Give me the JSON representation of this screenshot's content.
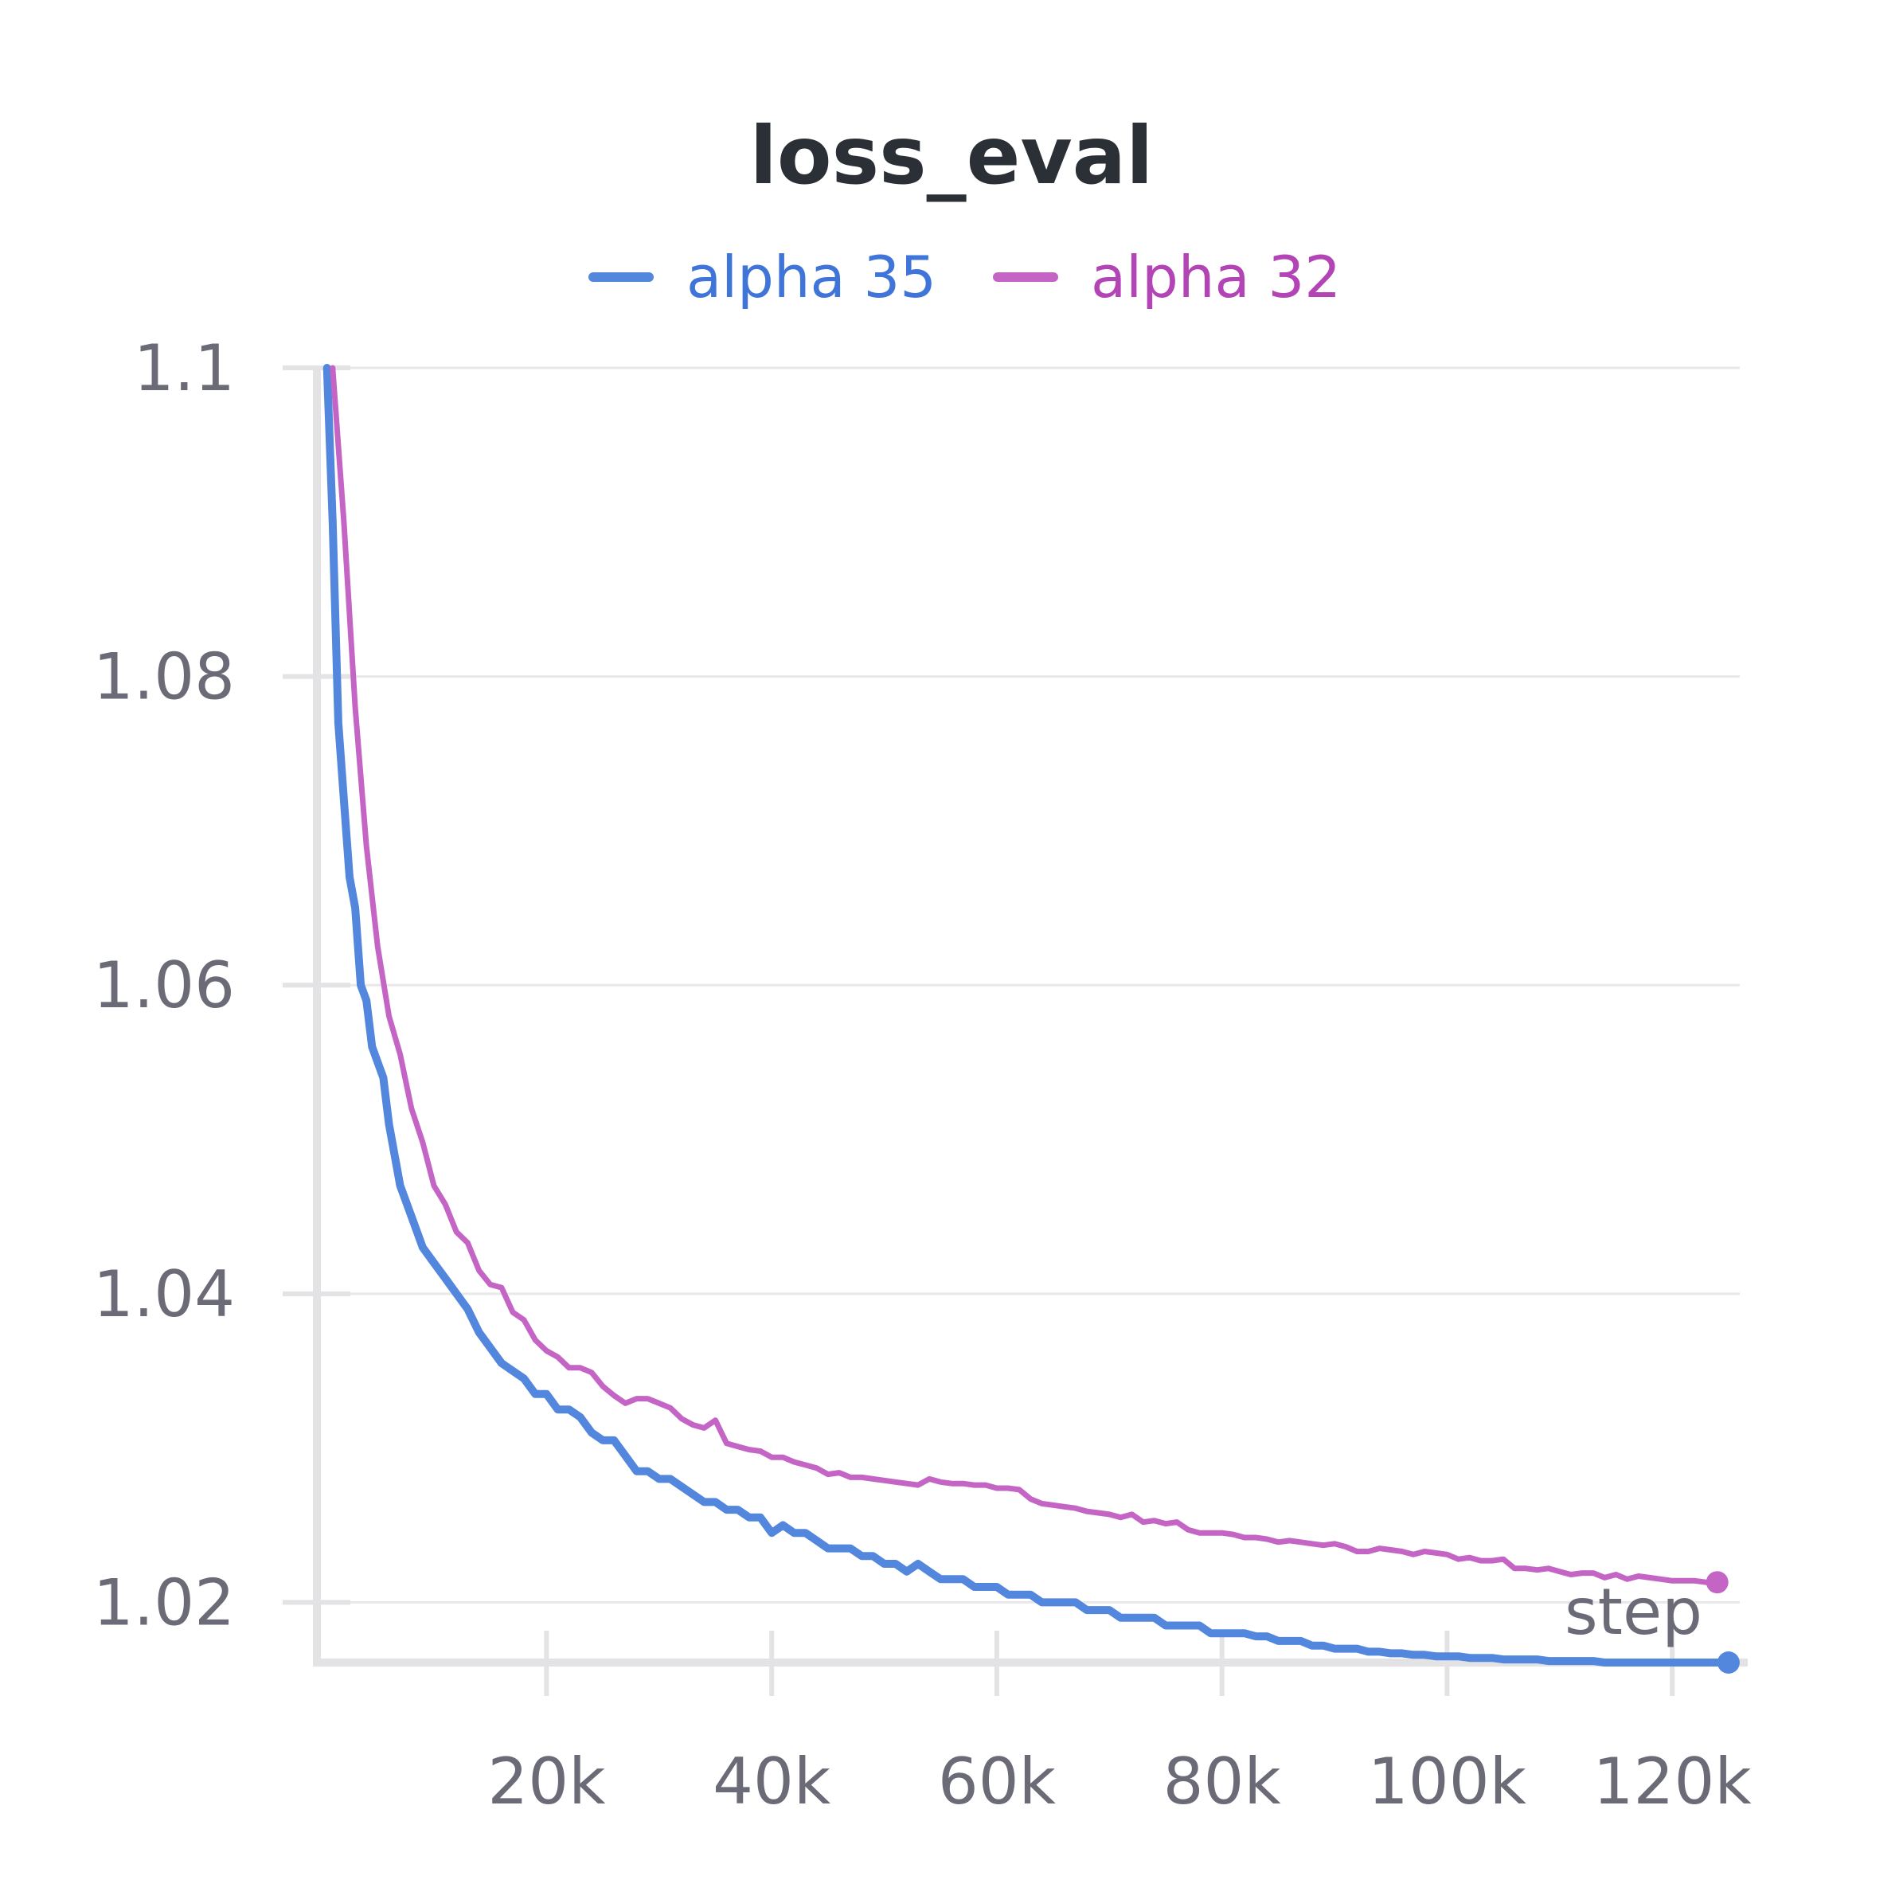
{
  "chart_data": {
    "type": "line",
    "title": "loss_eval",
    "xlabel": "step",
    "ylabel": "",
    "xlim": [
      -400,
      126000
    ],
    "ylim": [
      1.0161,
      1.1
    ],
    "grid": true,
    "legend_position": "top-center",
    "x_ticks": [
      {
        "value": 20000,
        "label": "20k"
      },
      {
        "value": 40000,
        "label": "40k"
      },
      {
        "value": 60000,
        "label": "60k"
      },
      {
        "value": 80000,
        "label": "80k"
      },
      {
        "value": 100000,
        "label": "100k"
      },
      {
        "value": 120000,
        "label": "120k"
      }
    ],
    "y_ticks": [
      {
        "value": 1.1,
        "label": "1.1"
      },
      {
        "value": 1.08,
        "label": "1.08"
      },
      {
        "value": 1.06,
        "label": "1.06"
      },
      {
        "value": 1.04,
        "label": "1.04"
      },
      {
        "value": 1.02,
        "label": "1.02"
      }
    ],
    "series": [
      {
        "name": "alpha 35",
        "color": "#5387dd",
        "x": [
          500,
          1000,
          1500,
          2000,
          2500,
          3000,
          3500,
          4000,
          4500,
          5000,
          5500,
          6000,
          7000,
          8000,
          9000,
          10000,
          11000,
          12000,
          13000,
          14000,
          15000,
          16000,
          17000,
          18000,
          19000,
          20000,
          21000,
          22000,
          23000,
          24000,
          25000,
          26000,
          27000,
          28000,
          29000,
          30000,
          31000,
          32000,
          33000,
          34000,
          35000,
          36000,
          37000,
          38000,
          39000,
          40000,
          41000,
          42000,
          43000,
          44000,
          45000,
          46000,
          47000,
          48000,
          49000,
          50000,
          51000,
          52000,
          53000,
          54000,
          55000,
          56000,
          57000,
          58000,
          59000,
          60000,
          61000,
          62000,
          63000,
          64000,
          65000,
          66000,
          67000,
          68000,
          69000,
          70000,
          71000,
          72000,
          73000,
          74000,
          75000,
          76000,
          77000,
          78000,
          79000,
          80000,
          81000,
          82000,
          83000,
          84000,
          85000,
          86000,
          87000,
          88000,
          89000,
          90000,
          91000,
          92000,
          93000,
          94000,
          95000,
          96000,
          97000,
          98000,
          99000,
          100000,
          101000,
          102000,
          103000,
          104000,
          105000,
          106000,
          107000,
          108000,
          109000,
          110000,
          111000,
          112000,
          113000,
          114000,
          115000,
          116000,
          117000,
          118000,
          119000,
          120000,
          121000,
          122000,
          123000,
          124000,
          125000
        ],
        "values": [
          1.1,
          1.09,
          1.077,
          1.072,
          1.067,
          1.065,
          1.06,
          1.059,
          1.056,
          1.055,
          1.054,
          1.051,
          1.047,
          1.045,
          1.043,
          1.042,
          1.041,
          1.04,
          1.039,
          1.0375,
          1.0365,
          1.0355,
          1.035,
          1.0345,
          1.0335,
          1.0335,
          1.0325,
          1.0325,
          1.032,
          1.031,
          1.0305,
          1.0305,
          1.0295,
          1.0285,
          1.0285,
          1.028,
          1.028,
          1.0275,
          1.027,
          1.0265,
          1.0265,
          1.026,
          1.026,
          1.0255,
          1.0255,
          1.0245,
          1.025,
          1.0245,
          1.0245,
          1.024,
          1.0235,
          1.0235,
          1.0235,
          1.023,
          1.023,
          1.0225,
          1.0225,
          1.022,
          1.0225,
          1.022,
          1.0215,
          1.0215,
          1.0215,
          1.021,
          1.021,
          1.021,
          1.0205,
          1.0205,
          1.0205,
          1.02,
          1.02,
          1.02,
          1.02,
          1.0195,
          1.0195,
          1.0195,
          1.019,
          1.019,
          1.019,
          1.019,
          1.0185,
          1.0185,
          1.0185,
          1.0185,
          1.018,
          1.018,
          1.018,
          1.018,
          1.0178,
          1.0178,
          1.0175,
          1.0175,
          1.0175,
          1.0172,
          1.0172,
          1.017,
          1.017,
          1.017,
          1.0168,
          1.0168,
          1.0167,
          1.0167,
          1.0166,
          1.0166,
          1.0165,
          1.0165,
          1.0165,
          1.0164,
          1.0164,
          1.0164,
          1.0163,
          1.0163,
          1.0163,
          1.0163,
          1.0162,
          1.0162,
          1.0162,
          1.0162,
          1.0162,
          1.0161,
          1.0161,
          1.0161,
          1.0161,
          1.0161,
          1.0161,
          1.0161,
          1.0161,
          1.0161,
          1.0161,
          1.0161,
          1.0161
        ]
      },
      {
        "name": "alpha 32",
        "color": "#c465c6",
        "x": [
          1000,
          2000,
          3000,
          4000,
          5000,
          6000,
          7000,
          8000,
          9000,
          10000,
          11000,
          12000,
          13000,
          14000,
          15000,
          16000,
          17000,
          18000,
          19000,
          20000,
          21000,
          22000,
          23000,
          24000,
          25000,
          26000,
          27000,
          28000,
          29000,
          30000,
          31000,
          32000,
          33000,
          34000,
          35000,
          36000,
          37000,
          38000,
          39000,
          40000,
          41000,
          42000,
          43000,
          44000,
          45000,
          46000,
          47000,
          48000,
          49000,
          50000,
          51000,
          52000,
          53000,
          54000,
          55000,
          56000,
          57000,
          58000,
          59000,
          60000,
          61000,
          62000,
          63000,
          64000,
          65000,
          66000,
          67000,
          68000,
          69000,
          70000,
          71000,
          72000,
          73000,
          74000,
          75000,
          76000,
          77000,
          78000,
          79000,
          80000,
          81000,
          82000,
          83000,
          84000,
          85000,
          86000,
          87000,
          88000,
          89000,
          90000,
          91000,
          92000,
          93000,
          94000,
          95000,
          96000,
          97000,
          98000,
          99000,
          100000,
          101000,
          102000,
          103000,
          104000,
          105000,
          106000,
          107000,
          108000,
          109000,
          110000,
          111000,
          112000,
          113000,
          114000,
          115000,
          116000,
          117000,
          118000,
          119000,
          120000,
          121000,
          122000,
          123000,
          124000
        ],
        "values": [
          1.1,
          1.09,
          1.078,
          1.069,
          1.0625,
          1.058,
          1.0555,
          1.052,
          1.0498,
          1.047,
          1.0458,
          1.044,
          1.0433,
          1.0415,
          1.0406,
          1.0404,
          1.0388,
          1.0383,
          1.037,
          1.0363,
          1.0359,
          1.0352,
          1.0352,
          1.0349,
          1.034,
          1.0334,
          1.0329,
          1.0332,
          1.0332,
          1.0329,
          1.0326,
          1.0319,
          1.0315,
          1.0313,
          1.0318,
          1.0303,
          1.0301,
          1.0299,
          1.0298,
          1.0294,
          1.0294,
          1.0291,
          1.0289,
          1.0287,
          1.0283,
          1.0284,
          1.0281,
          1.0281,
          1.028,
          1.0279,
          1.0278,
          1.0277,
          1.0276,
          1.028,
          1.0278,
          1.0277,
          1.0277,
          1.0276,
          1.0276,
          1.0274,
          1.0274,
          1.0273,
          1.0267,
          1.0264,
          1.0263,
          1.0262,
          1.0261,
          1.0259,
          1.0258,
          1.0257,
          1.0255,
          1.0257,
          1.0252,
          1.0253,
          1.0251,
          1.0252,
          1.0247,
          1.0245,
          1.0245,
          1.0245,
          1.0244,
          1.0242,
          1.0242,
          1.0241,
          1.0239,
          1.024,
          1.0239,
          1.0238,
          1.0237,
          1.0238,
          1.0236,
          1.0233,
          1.0233,
          1.0235,
          1.0234,
          1.0233,
          1.0231,
          1.0233,
          1.0232,
          1.0231,
          1.0228,
          1.0229,
          1.0227,
          1.0227,
          1.0228,
          1.0222,
          1.0222,
          1.0221,
          1.0222,
          1.022,
          1.0218,
          1.0219,
          1.0219,
          1.0216,
          1.0218,
          1.0215,
          1.0217,
          1.0216,
          1.0215,
          1.0214,
          1.0214,
          1.0214,
          1.0213,
          1.0213
        ]
      }
    ]
  }
}
